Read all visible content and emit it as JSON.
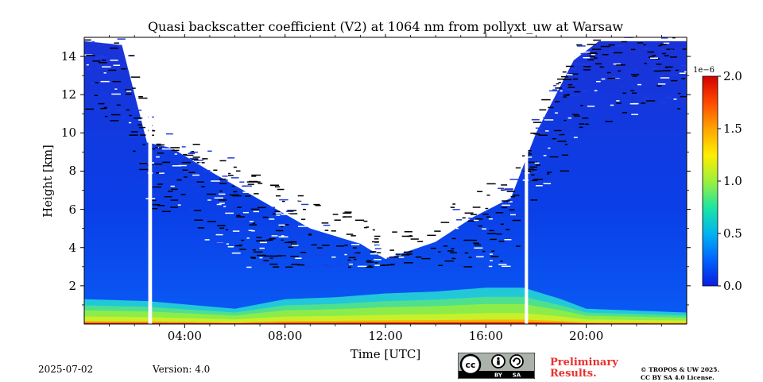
{
  "chart_data": {
    "type": "heatmap",
    "title": "Quasi backscatter coefficient (V2) at 1064 nm from pollyxt_uw at Warsaw",
    "xlabel": "Time [UTC]",
    "ylabel": "Height [km]",
    "x_range_hours": [
      0,
      24
    ],
    "y_range_km": [
      0,
      15
    ],
    "x_ticks": [
      {
        "value": 4,
        "label": "04:00"
      },
      {
        "value": 8,
        "label": "08:00"
      },
      {
        "value": 12,
        "label": "12:00"
      },
      {
        "value": 16,
        "label": "16:00"
      },
      {
        "value": 20,
        "label": "20:00"
      }
    ],
    "y_ticks": [
      {
        "value": 2,
        "label": "2"
      },
      {
        "value": 4,
        "label": "4"
      },
      {
        "value": 6,
        "label": "6"
      },
      {
        "value": 8,
        "label": "8"
      },
      {
        "value": 10,
        "label": "10"
      },
      {
        "value": 12,
        "label": "12"
      },
      {
        "value": 14,
        "label": "14"
      }
    ],
    "colorbar": {
      "range": [
        0.0,
        2.0
      ],
      "exponent_label": "1e−6",
      "ticks": [
        {
          "value": 0.0,
          "label": "0.0"
        },
        {
          "value": 0.5,
          "label": "0.5"
        },
        {
          "value": 1.0,
          "label": "1.0"
        },
        {
          "value": 1.5,
          "label": "1.5"
        },
        {
          "value": 2.0,
          "label": "2.0"
        }
      ],
      "colors": [
        "#0a1de0",
        "#0063ff",
        "#00b4f0",
        "#1ee6a0",
        "#9ef03c",
        "#ffee00",
        "#ffa400",
        "#ff4a00",
        "#d40000"
      ]
    },
    "gaps_hours": [
      [
        2.55,
        2.7
      ],
      [
        17.55,
        17.68
      ]
    ],
    "signal_top_km": [
      [
        0,
        14.8
      ],
      [
        1.5,
        14.6
      ],
      [
        2.5,
        9.5
      ],
      [
        3.5,
        9.2
      ],
      [
        5,
        8.0
      ],
      [
        7,
        6.5
      ],
      [
        9,
        5.0
      ],
      [
        11,
        4.2
      ],
      [
        12,
        3.4
      ],
      [
        14,
        4.3
      ],
      [
        15.5,
        5.6
      ],
      [
        17,
        6.6
      ],
      [
        18,
        10.0
      ],
      [
        19.5,
        13.8
      ],
      [
        20.5,
        14.8
      ],
      [
        24,
        14.8
      ]
    ],
    "boundary_layer": {
      "base_top_km": [
        [
          0,
          1.3
        ],
        [
          2.5,
          1.2
        ],
        [
          6,
          0.8
        ],
        [
          8,
          1.3
        ],
        [
          10,
          1.4
        ],
        [
          12,
          1.6
        ],
        [
          14,
          1.7
        ],
        [
          16,
          1.9
        ],
        [
          17.5,
          1.9
        ],
        [
          19,
          1.3
        ],
        [
          20,
          0.8
        ],
        [
          22,
          0.7
        ],
        [
          24,
          0.6
        ]
      ],
      "peak_value_1e-6": 2.0
    }
  },
  "footer": {
    "date": "2025-07-02",
    "version": "Version: 4.0",
    "license_badge": {
      "cc": "cc",
      "by": "BY",
      "sa": "SA"
    },
    "preliminary_line1": "Preliminary",
    "preliminary_line2": "Results.",
    "copyright_line1": "© TROPOS & UW 2025.",
    "copyright_line2": "CC BY SA 4.0 License."
  }
}
